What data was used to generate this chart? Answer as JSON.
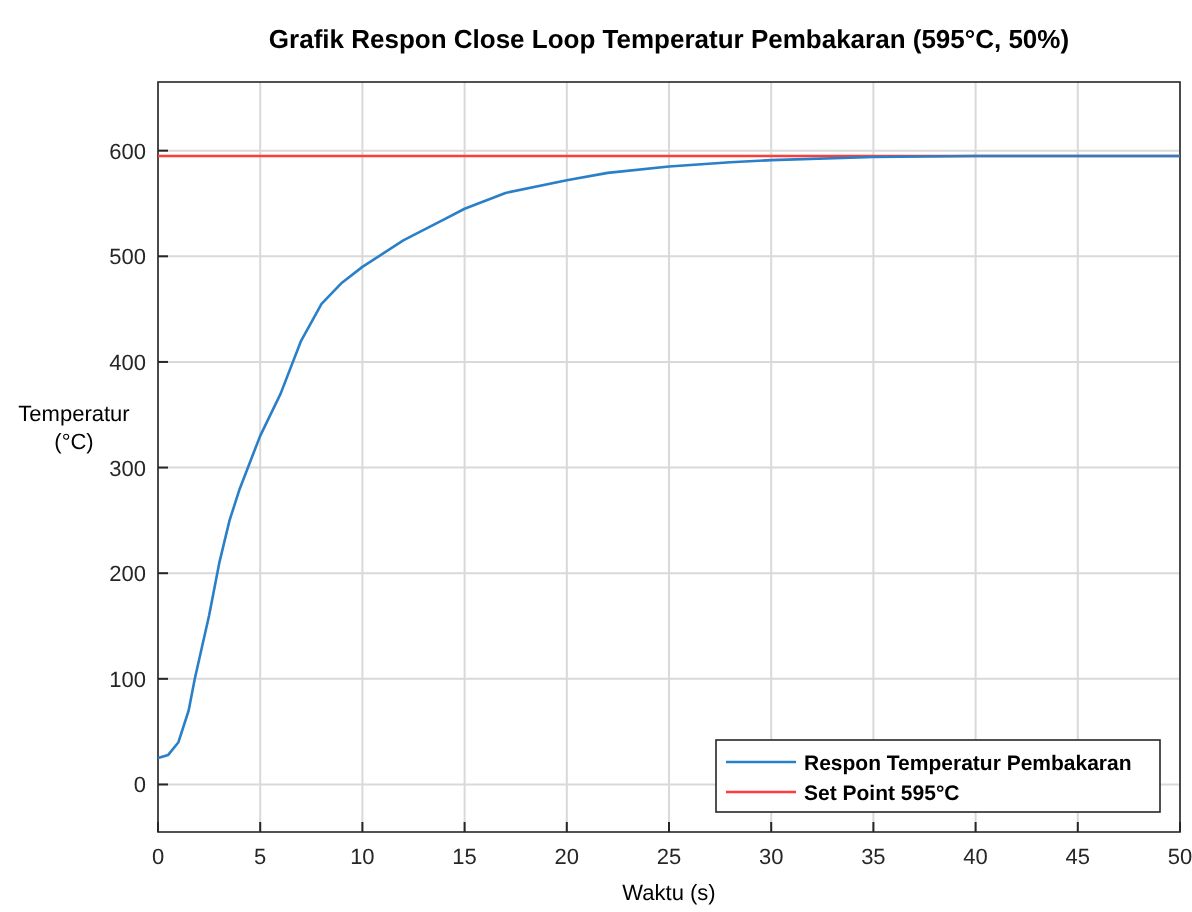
{
  "chart_data": {
    "type": "line",
    "title": "Grafik Respon Close Loop Temperatur Pembakaran (595°C, 50%)",
    "xlabel": "Waktu (s)",
    "ylabel": "Temperatur (°C)",
    "xlim": [
      0,
      50
    ],
    "xticks": [
      0,
      5,
      10,
      15,
      20,
      25,
      30,
      35,
      40,
      45,
      50
    ],
    "ylim": [
      -45,
      665
    ],
    "yticks": [
      0,
      100,
      200,
      300,
      400,
      500,
      600
    ],
    "grid": true,
    "legend": "bottom right",
    "series": [
      {
        "name": "Respon Temperatur Pembakaran",
        "color": "#2a7fc9",
        "x": [
          0,
          0.5,
          1,
          1.5,
          1.8,
          2.5,
          3,
          3.5,
          4,
          5,
          6,
          7,
          8,
          9,
          10,
          12,
          14,
          15,
          17,
          20,
          22,
          25,
          28,
          30,
          35,
          40,
          45,
          50
        ],
        "values": [
          25,
          28,
          40,
          70,
          100,
          160,
          210,
          250,
          280,
          330,
          370,
          420,
          455,
          475,
          490,
          515,
          535,
          545,
          560,
          572,
          579,
          585,
          589,
          591,
          594,
          595,
          595,
          595
        ]
      }
    ],
    "ref_lines": [
      {
        "axis": "y",
        "value": 595,
        "label": "Set Point 595°C",
        "color": "#ff3b3b"
      }
    ]
  }
}
